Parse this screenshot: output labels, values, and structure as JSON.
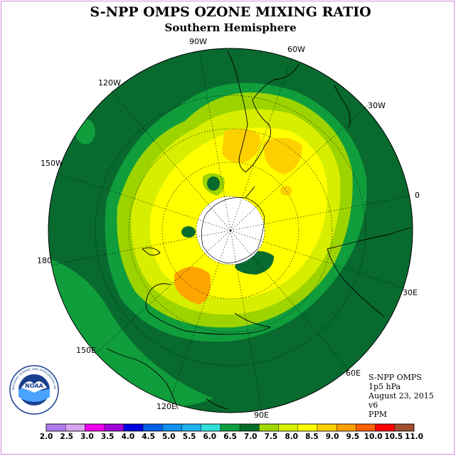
{
  "title": "S-NPP OMPS OZONE MIXING RATIO",
  "subtitle": "Southern Hemisphere",
  "longitude_labels": {
    "w90": "90W",
    "w60": "60W",
    "w120": "120W",
    "w30": "30W",
    "w150": "150W",
    "zero": "0",
    "d180": "180",
    "e30": "30E",
    "e150": "150E",
    "e60": "60E",
    "e120": "120E",
    "e90": "90E"
  },
  "info": {
    "instrument": "S-NPP OMPS",
    "level": "1p5 hPa",
    "date": "August 23, 2015",
    "version": "v6",
    "units": "PPM"
  },
  "logo": {
    "text": "NOAA",
    "ring_text": "NATIONAL OCEANIC AND ATMOSPHERIC ADMINISTRATION · U.S. DEPARTMENT OF COMMERCE"
  },
  "colorbar": {
    "labels": [
      "2.0",
      "2.5",
      "3.0",
      "3.5",
      "4.0",
      "4.5",
      "5.0",
      "5.5",
      "6.0",
      "6.5",
      "7.0",
      "7.5",
      "8.0",
      "8.5",
      "9.0",
      "9.5",
      "10.0",
      "10.5",
      "11.0"
    ],
    "colors": [
      "#b07cf0",
      "#d8a6f0",
      "#ee00ee",
      "#a000d8",
      "#0000e0",
      "#0060e8",
      "#1090f0",
      "#22b0f0",
      "#30e0d8",
      "#10a040",
      "#006e28",
      "#a0d800",
      "#d8f000",
      "#ffff00",
      "#ffd000",
      "#ffa000",
      "#ff6000",
      "#ff0000",
      "#a05030"
    ]
  },
  "colors": {
    "dark_green": "#086a2e",
    "mid_green": "#109d3c",
    "light_green": "#9dd400",
    "yellow_green": "#d7ee00",
    "yellow": "#ffff00",
    "gold": "#ffd000",
    "orange": "#ffa500",
    "pole_fill": "#ffffff",
    "frame": "#d98ad9"
  }
}
